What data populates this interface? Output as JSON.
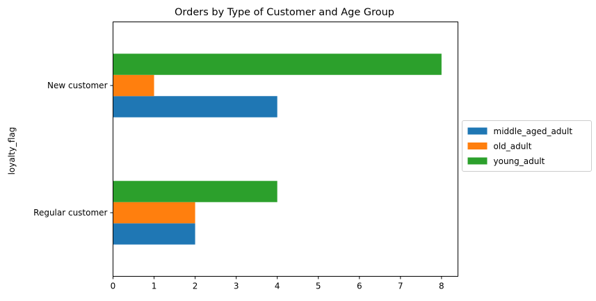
{
  "chart_data": {
    "type": "bar",
    "orientation": "horizontal",
    "title": "Orders by Type of Customer and Age Group",
    "xlabel": "",
    "ylabel": "loyalty_flag",
    "categories": [
      "Regular customer",
      "New customer"
    ],
    "series": [
      {
        "name": "middle_aged_adult",
        "color": "#1f77b4",
        "values": [
          2,
          4
        ]
      },
      {
        "name": "old_adult",
        "color": "#ff7f0e",
        "values": [
          2,
          1
        ]
      },
      {
        "name": "young_adult",
        "color": "#2ca02c",
        "values": [
          4,
          8
        ]
      }
    ],
    "xlim": [
      0,
      8.4
    ],
    "xticks": [
      0,
      1,
      2,
      3,
      4,
      5,
      6,
      7,
      8
    ],
    "grid": false,
    "legend_position": "center-right-outside"
  }
}
